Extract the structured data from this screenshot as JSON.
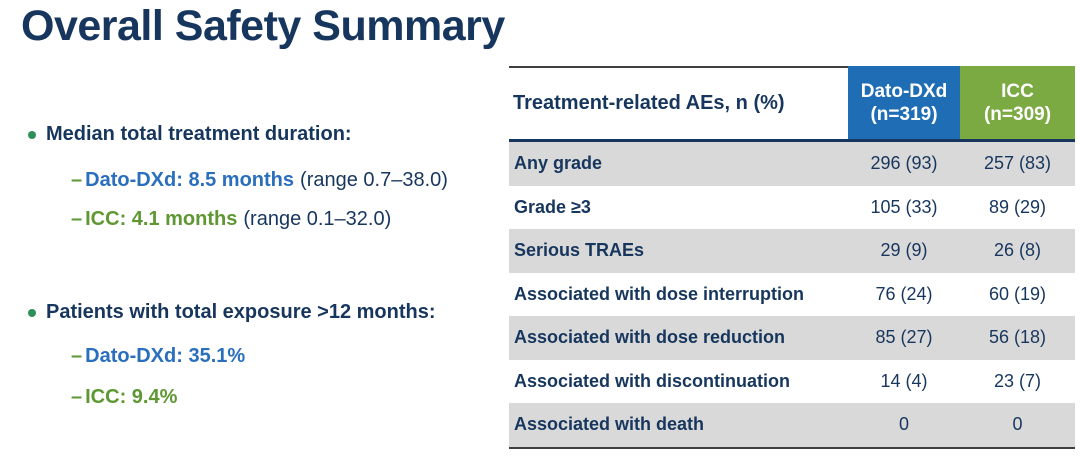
{
  "title": "Overall Safety Summary",
  "markers": {
    "dash": "–"
  },
  "colors": {
    "navy_text": "#17365D",
    "dato_blue_text": "#2A6FBE",
    "icc_green_text": "#5F9732",
    "header_blue": "#1F6DB5",
    "header_green": "#7BA942",
    "row_shade_gray": "#D9D9D9",
    "bullet_green": "#2E8F58"
  },
  "bullets": [
    {
      "heading": "Median total treatment duration:",
      "items": [
        {
          "label": "Dato-DXd: 8.5 months",
          "detail": "(range 0.7–38.0)"
        },
        {
          "label": "ICC: 4.1 months",
          "detail": "(range 0.1–32.0)"
        }
      ]
    },
    {
      "heading": "Patients with total exposure >12 months:",
      "items": [
        {
          "label": "Dato-DXd: 35.1%",
          "detail": ""
        },
        {
          "label": "ICC: 9.4%",
          "detail": ""
        }
      ]
    }
  ],
  "table": {
    "header": {
      "label": "Treatment-related AEs, n (%)",
      "col1_name": "Dato-DXd",
      "col1_n": "(n=319)",
      "col2_name": "ICC",
      "col2_n": "(n=309)"
    },
    "rows": [
      {
        "label": "Any grade",
        "dato": "296 (93)",
        "icc": "257 (83)"
      },
      {
        "label": "Grade ≥3",
        "dato": "105 (33)",
        "icc": "89 (29)"
      },
      {
        "label": "Serious TRAEs",
        "dato": "29 (9)",
        "icc": "26 (8)"
      },
      {
        "label": "Associated with dose interruption",
        "dato": "76 (24)",
        "icc": "60 (19)"
      },
      {
        "label": "Associated with dose reduction",
        "dato": "85 (27)",
        "icc": "56 (18)"
      },
      {
        "label": "Associated with discontinuation",
        "dato": "14 (4)",
        "icc": "23 (7)"
      },
      {
        "label": "Associated with death",
        "dato": "0",
        "icc": "0"
      }
    ]
  }
}
